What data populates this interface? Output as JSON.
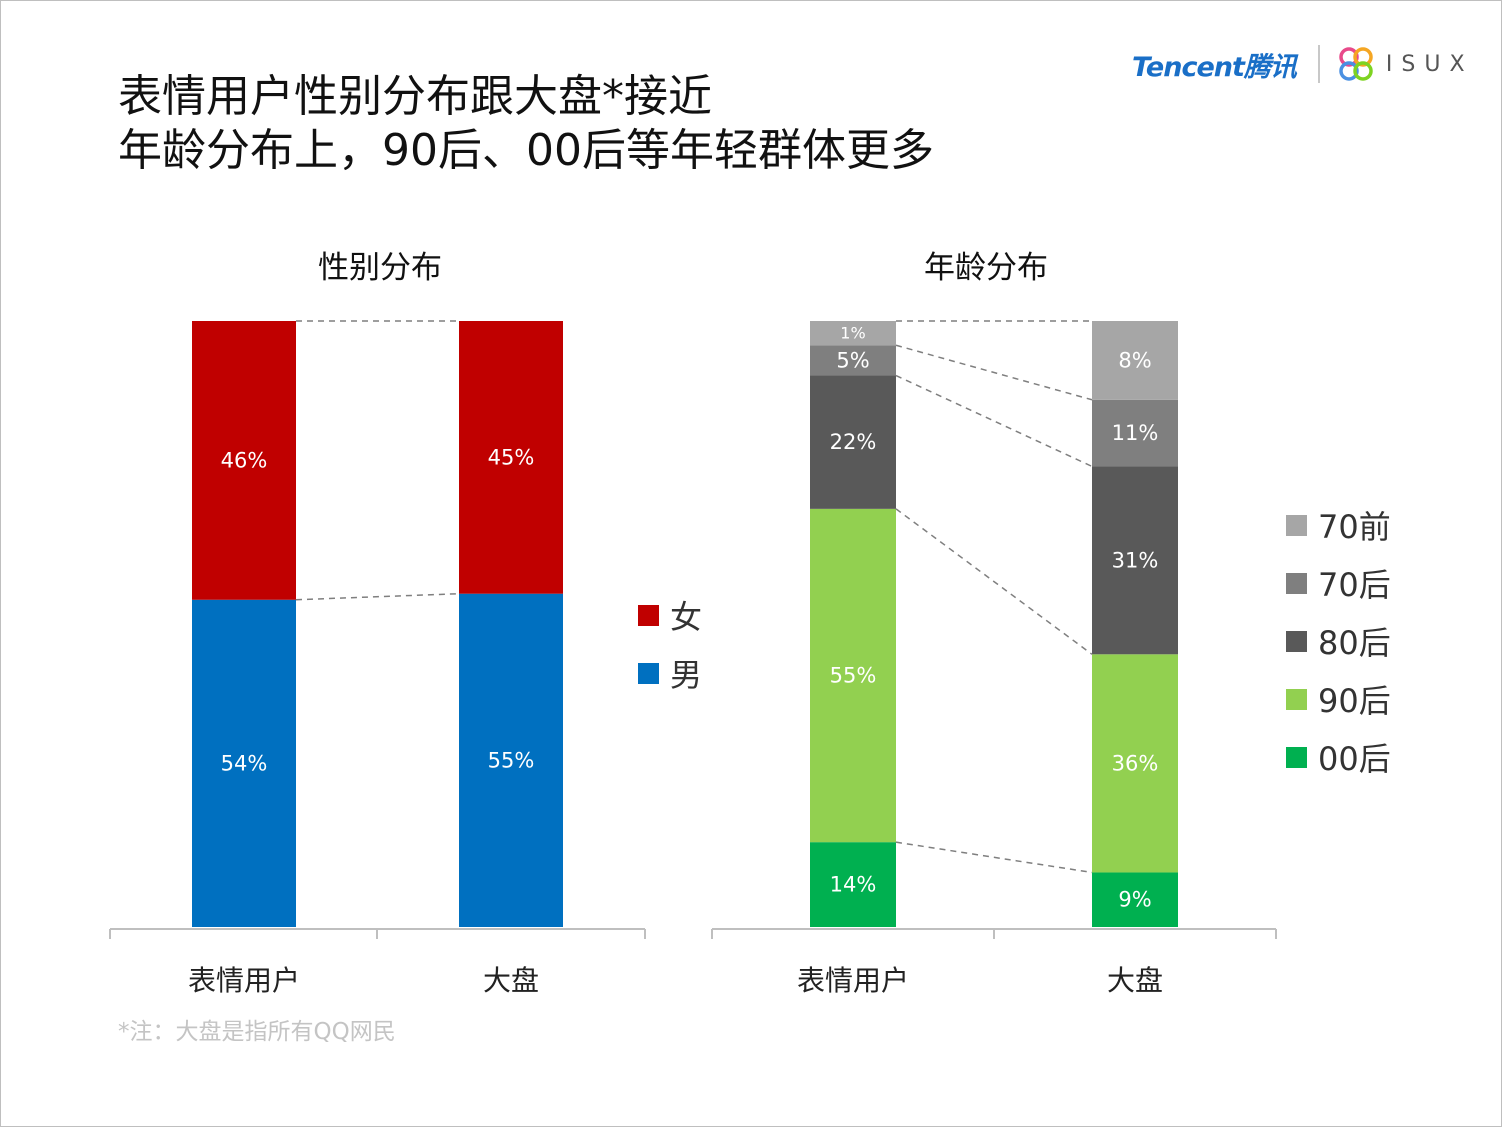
{
  "title": {
    "line1": "表情用户性别分布跟大盘*接近",
    "line2": "年龄分布上，90后、00后等年轻群体更多"
  },
  "logo": {
    "brand": "Tencent腾讯",
    "sub": "ISUX",
    "brand_icon": "isux-flower-icon"
  },
  "note": "*注：大盘是指所有QQ网民",
  "chart_data": [
    {
      "type": "bar",
      "stacked": true,
      "title": "性别分布",
      "categories": [
        "表情用户",
        "大盘"
      ],
      "series": [
        {
          "name": "男",
          "values": [
            54,
            55
          ],
          "labels": [
            "54%",
            "55%"
          ],
          "color": "#0070c0"
        },
        {
          "name": "女",
          "values": [
            46,
            45
          ],
          "labels": [
            "46%",
            "45%"
          ],
          "color": "#c00000"
        }
      ],
      "legend": [
        "女",
        "男"
      ],
      "unit": "%",
      "ylim": [
        0,
        100
      ]
    },
    {
      "type": "bar",
      "stacked": true,
      "title": "年龄分布",
      "categories": [
        "表情用户",
        "大盘"
      ],
      "series": [
        {
          "name": "00后",
          "values": [
            14,
            9
          ],
          "labels": [
            "14%",
            "9%"
          ],
          "color": "#00b050"
        },
        {
          "name": "90后",
          "values": [
            55,
            36
          ],
          "labels": [
            "55%",
            "36%"
          ],
          "color": "#92d050"
        },
        {
          "name": "80后",
          "values": [
            22,
            31
          ],
          "labels": [
            "22%",
            "31%"
          ],
          "color": "#595959"
        },
        {
          "name": "70后",
          "values": [
            5,
            11
          ],
          "labels": [
            "5%",
            "11%"
          ],
          "color": "#7f7f7f"
        },
        {
          "name": "70前",
          "values": [
            1,
            8
          ],
          "labels": [
            "1%",
            "8%"
          ],
          "color": "#a6a6a6"
        }
      ],
      "legend": [
        "70前",
        "70后",
        "80后",
        "90后",
        "00后"
      ],
      "unit": "%",
      "ylim": [
        0,
        100
      ]
    }
  ]
}
